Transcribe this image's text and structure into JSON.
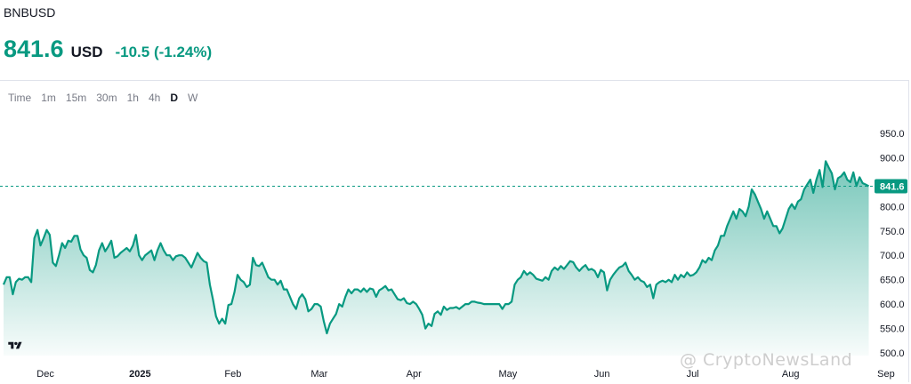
{
  "header": {
    "symbol": "BNBUSD",
    "price": "841.6",
    "currency": "USD",
    "change": "-10.5 (-1.24%)"
  },
  "intervals": [
    {
      "label": "Time",
      "active": false
    },
    {
      "label": "1m",
      "active": false
    },
    {
      "label": "15m",
      "active": false
    },
    {
      "label": "30m",
      "active": false
    },
    {
      "label": "1h",
      "active": false
    },
    {
      "label": "4h",
      "active": false
    },
    {
      "label": "D",
      "active": true
    },
    {
      "label": "W",
      "active": false
    }
  ],
  "colors": {
    "line": "#089981",
    "accent": "#089981",
    "grid": "#e0e3eb",
    "axis_text": "#131722"
  },
  "watermark": "@ CryptoNewsLand",
  "chart_data": {
    "type": "area",
    "ylim": [
      500,
      960
    ],
    "y_ticks": [
      500.0,
      550.0,
      600.0,
      650.0,
      700.0,
      750.0,
      800.0,
      850.0,
      900.0,
      950.0
    ],
    "current_value": 841.6,
    "current_label": "841.6",
    "x_tick_labels": [
      {
        "label": "Dec",
        "t": 5,
        "bold": false
      },
      {
        "label": "2025",
        "t": 35,
        "bold": true
      },
      {
        "label": "Feb",
        "t": 66,
        "bold": false
      },
      {
        "label": "Mar",
        "t": 94,
        "bold": false
      },
      {
        "label": "Apr",
        "t": 125,
        "bold": false
      },
      {
        "label": "May",
        "t": 155,
        "bold": false
      },
      {
        "label": "Jun",
        "t": 186,
        "bold": false
      },
      {
        "label": "Jul",
        "t": 216,
        "bold": false
      },
      {
        "label": "Aug",
        "t": 247,
        "bold": false
      },
      {
        "label": "Sep",
        "t": 278,
        "bold": false
      }
    ],
    "t_range": [
      0,
      282
    ],
    "series": [
      {
        "points": [
          [
            0,
            640
          ],
          [
            1,
            655
          ],
          [
            2,
            655
          ],
          [
            3,
            620
          ],
          [
            4,
            645
          ],
          [
            5,
            652
          ],
          [
            6,
            650
          ],
          [
            7,
            655
          ],
          [
            8,
            655
          ],
          [
            9,
            645
          ],
          [
            10,
            735
          ],
          [
            11,
            752
          ],
          [
            12,
            720
          ],
          [
            13,
            735
          ],
          [
            14,
            752
          ],
          [
            15,
            742
          ],
          [
            16,
            685
          ],
          [
            17,
            678
          ],
          [
            18,
            700
          ],
          [
            19,
            725
          ],
          [
            20,
            715
          ],
          [
            21,
            730
          ],
          [
            22,
            728
          ],
          [
            23,
            740
          ],
          [
            24,
            740
          ],
          [
            25,
            712
          ],
          [
            26,
            700
          ],
          [
            27,
            695
          ],
          [
            28,
            670
          ],
          [
            29,
            665
          ],
          [
            30,
            680
          ],
          [
            31,
            710
          ],
          [
            32,
            725
          ],
          [
            33,
            708
          ],
          [
            34,
            718
          ],
          [
            35,
            730
          ],
          [
            36,
            695
          ],
          [
            37,
            698
          ],
          [
            38,
            705
          ],
          [
            39,
            710
          ],
          [
            40,
            715
          ],
          [
            41,
            708
          ],
          [
            42,
            720
          ],
          [
            43,
            742
          ],
          [
            44,
            700
          ],
          [
            45,
            690
          ],
          [
            46,
            700
          ],
          [
            47,
            705
          ],
          [
            48,
            710
          ],
          [
            49,
            690
          ],
          [
            50,
            710
          ],
          [
            51,
            725
          ],
          [
            52,
            710
          ],
          [
            53,
            700
          ],
          [
            54,
            700
          ],
          [
            55,
            690
          ],
          [
            56,
            698
          ],
          [
            57,
            700
          ],
          [
            58,
            700
          ],
          [
            59,
            695
          ],
          [
            60,
            685
          ],
          [
            61,
            675
          ],
          [
            62,
            690
          ],
          [
            63,
            705
          ],
          [
            64,
            695
          ],
          [
            65,
            688
          ],
          [
            66,
            685
          ],
          [
            67,
            640
          ],
          [
            68,
            610
          ],
          [
            69,
            575
          ],
          [
            70,
            560
          ],
          [
            71,
            570
          ],
          [
            72,
            560
          ],
          [
            73,
            598
          ],
          [
            74,
            600
          ],
          [
            75,
            625
          ],
          [
            76,
            660
          ],
          [
            77,
            650
          ],
          [
            78,
            645
          ],
          [
            79,
            635
          ],
          [
            80,
            640
          ],
          [
            81,
            695
          ],
          [
            82,
            680
          ],
          [
            83,
            678
          ],
          [
            84,
            685
          ],
          [
            85,
            670
          ],
          [
            86,
            655
          ],
          [
            87,
            650
          ],
          [
            88,
            650
          ],
          [
            89,
            640
          ],
          [
            90,
            648
          ],
          [
            91,
            630
          ],
          [
            92,
            630
          ],
          [
            93,
            615
          ],
          [
            94,
            600
          ],
          [
            95,
            590
          ],
          [
            96,
            612
          ],
          [
            97,
            620
          ],
          [
            98,
            610
          ],
          [
            99,
            585
          ],
          [
            100,
            590
          ],
          [
            101,
            600
          ],
          [
            102,
            600
          ],
          [
            103,
            595
          ],
          [
            104,
            565
          ],
          [
            105,
            540
          ],
          [
            106,
            560
          ],
          [
            107,
            570
          ],
          [
            108,
            580
          ],
          [
            109,
            600
          ],
          [
            110,
            595
          ],
          [
            111,
            615
          ],
          [
            112,
            630
          ],
          [
            113,
            622
          ],
          [
            114,
            630
          ],
          [
            115,
            630
          ],
          [
            116,
            625
          ],
          [
            117,
            632
          ],
          [
            118,
            625
          ],
          [
            119,
            632
          ],
          [
            120,
            630
          ],
          [
            121,
            615
          ],
          [
            122,
            628
          ],
          [
            123,
            632
          ],
          [
            124,
            637
          ],
          [
            125,
            628
          ],
          [
            126,
            630
          ],
          [
            127,
            620
          ],
          [
            128,
            610
          ],
          [
            129,
            608
          ],
          [
            130,
            612
          ],
          [
            131,
            602
          ],
          [
            132,
            600
          ],
          [
            133,
            605
          ],
          [
            134,
            600
          ],
          [
            135,
            590
          ],
          [
            136,
            578
          ],
          [
            137,
            550
          ],
          [
            138,
            560
          ],
          [
            139,
            555
          ],
          [
            140,
            580
          ],
          [
            141,
            585
          ],
          [
            142,
            578
          ],
          [
            143,
            595
          ],
          [
            144,
            588
          ],
          [
            145,
            592
          ],
          [
            146,
            592
          ],
          [
            147,
            594
          ],
          [
            148,
            590
          ],
          [
            149,
            595
          ],
          [
            150,
            600
          ],
          [
            151,
            600
          ],
          [
            152,
            605
          ],
          [
            153,
            605
          ],
          [
            154,
            603
          ],
          [
            155,
            602
          ],
          [
            156,
            600
          ],
          [
            157,
            600
          ],
          [
            158,
            600
          ],
          [
            159,
            600
          ],
          [
            160,
            600
          ],
          [
            161,
            600
          ],
          [
            162,
            590
          ],
          [
            163,
            600
          ],
          [
            164,
            600
          ],
          [
            165,
            605
          ],
          [
            166,
            640
          ],
          [
            167,
            650
          ],
          [
            168,
            655
          ],
          [
            169,
            668
          ],
          [
            170,
            660
          ],
          [
            171,
            665
          ],
          [
            172,
            660
          ],
          [
            173,
            652
          ],
          [
            174,
            650
          ],
          [
            175,
            648
          ],
          [
            176,
            655
          ],
          [
            177,
            650
          ],
          [
            178,
            668
          ],
          [
            179,
            675
          ],
          [
            180,
            670
          ],
          [
            181,
            678
          ],
          [
            182,
            672
          ],
          [
            183,
            680
          ],
          [
            184,
            688
          ],
          [
            185,
            686
          ],
          [
            186,
            675
          ],
          [
            187,
            668
          ],
          [
            188,
            675
          ],
          [
            189,
            680
          ],
          [
            190,
            670
          ],
          [
            191,
            672
          ],
          [
            192,
            668
          ],
          [
            193,
            655
          ],
          [
            194,
            670
          ],
          [
            195,
            665
          ],
          [
            196,
            628
          ],
          [
            197,
            650
          ],
          [
            198,
            660
          ],
          [
            199,
            668
          ],
          [
            200,
            675
          ],
          [
            201,
            678
          ],
          [
            202,
            685
          ],
          [
            203,
            668
          ],
          [
            204,
            660
          ],
          [
            205,
            650
          ],
          [
            206,
            655
          ],
          [
            207,
            648
          ],
          [
            208,
            645
          ],
          [
            209,
            635
          ],
          [
            210,
            640
          ],
          [
            211,
            612
          ],
          [
            212,
            640
          ],
          [
            213,
            645
          ],
          [
            214,
            648
          ],
          [
            215,
            645
          ],
          [
            216,
            650
          ],
          [
            217,
            645
          ],
          [
            218,
            660
          ],
          [
            219,
            650
          ],
          [
            220,
            660
          ],
          [
            221,
            655
          ],
          [
            222,
            665
          ],
          [
            223,
            658
          ],
          [
            224,
            660
          ],
          [
            225,
            665
          ],
          [
            226,
            675
          ],
          [
            227,
            690
          ],
          [
            228,
            685
          ],
          [
            229,
            695
          ],
          [
            230,
            690
          ],
          [
            231,
            710
          ],
          [
            232,
            720
          ],
          [
            233,
            740
          ],
          [
            234,
            740
          ],
          [
            235,
            760
          ],
          [
            236,
            775
          ],
          [
            237,
            790
          ],
          [
            238,
            775
          ],
          [
            239,
            795
          ],
          [
            240,
            790
          ],
          [
            241,
            780
          ],
          [
            242,
            800
          ],
          [
            243,
            835
          ],
          [
            244,
            825
          ],
          [
            245,
            810
          ],
          [
            246,
            795
          ],
          [
            247,
            775
          ],
          [
            248,
            790
          ],
          [
            249,
            775
          ],
          [
            250,
            760
          ],
          [
            251,
            760
          ],
          [
            252,
            745
          ],
          [
            253,
            755
          ],
          [
            254,
            775
          ],
          [
            255,
            795
          ],
          [
            256,
            805
          ],
          [
            257,
            795
          ],
          [
            258,
            810
          ],
          [
            259,
            815
          ],
          [
            260,
            835
          ],
          [
            261,
            845
          ],
          [
            262,
            855
          ],
          [
            263,
            828
          ],
          [
            264,
            855
          ],
          [
            265,
            875
          ],
          [
            266,
            840
          ],
          [
            267,
            893
          ],
          [
            268,
            880
          ],
          [
            269,
            868
          ],
          [
            270,
            835
          ],
          [
            271,
            858
          ],
          [
            272,
            862
          ],
          [
            273,
            870
          ],
          [
            274,
            855
          ],
          [
            275,
            850
          ],
          [
            276,
            870
          ],
          [
            277,
            842
          ],
          [
            278,
            860
          ],
          [
            279,
            848
          ],
          [
            280,
            845
          ],
          [
            281,
            841.6
          ]
        ]
      }
    ]
  }
}
